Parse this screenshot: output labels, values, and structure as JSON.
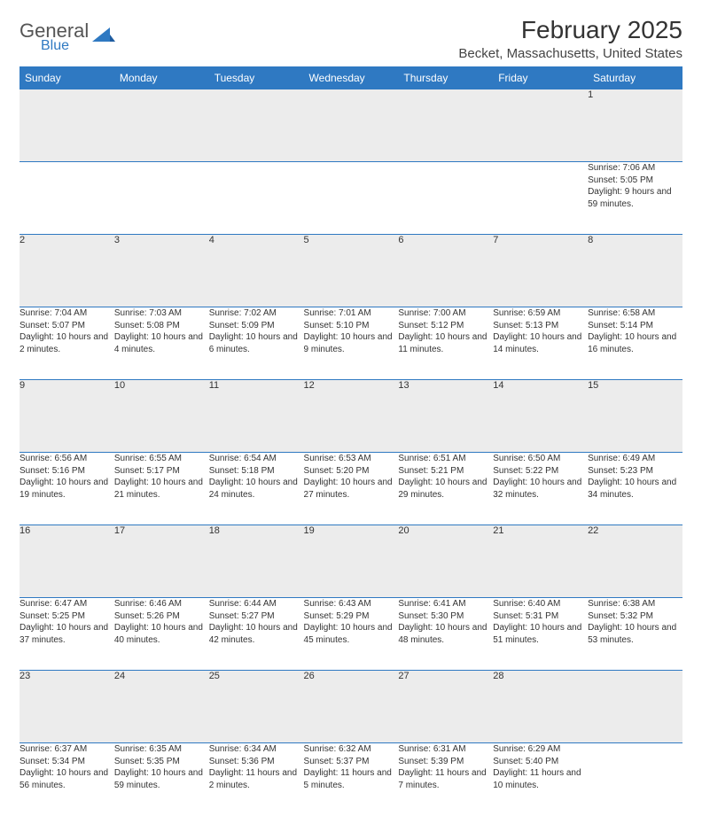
{
  "logo": {
    "word1": "General",
    "word2": "Blue",
    "icon_color": "#2f79c2",
    "text_color": "#555555"
  },
  "header": {
    "month_title": "February 2025",
    "location": "Becket, Massachusetts, United States"
  },
  "colors": {
    "header_bg": "#2f79c2",
    "header_text": "#ffffff",
    "daynum_bg": "#ececec",
    "divider": "#2f79c2",
    "body_text": "#333333"
  },
  "typography": {
    "title_fontsize": 28,
    "location_fontsize": 15,
    "dayheader_fontsize": 12,
    "daynum_fontsize": 11,
    "detail_fontsize": 10
  },
  "day_headers": [
    "Sunday",
    "Monday",
    "Tuesday",
    "Wednesday",
    "Thursday",
    "Friday",
    "Saturday"
  ],
  "weeks": [
    [
      null,
      null,
      null,
      null,
      null,
      null,
      {
        "n": "1",
        "sr": "Sunrise: 7:06 AM",
        "ss": "Sunset: 5:05 PM",
        "dl": "Daylight: 9 hours and 59 minutes."
      }
    ],
    [
      {
        "n": "2",
        "sr": "Sunrise: 7:04 AM",
        "ss": "Sunset: 5:07 PM",
        "dl": "Daylight: 10 hours and 2 minutes."
      },
      {
        "n": "3",
        "sr": "Sunrise: 7:03 AM",
        "ss": "Sunset: 5:08 PM",
        "dl": "Daylight: 10 hours and 4 minutes."
      },
      {
        "n": "4",
        "sr": "Sunrise: 7:02 AM",
        "ss": "Sunset: 5:09 PM",
        "dl": "Daylight: 10 hours and 6 minutes."
      },
      {
        "n": "5",
        "sr": "Sunrise: 7:01 AM",
        "ss": "Sunset: 5:10 PM",
        "dl": "Daylight: 10 hours and 9 minutes."
      },
      {
        "n": "6",
        "sr": "Sunrise: 7:00 AM",
        "ss": "Sunset: 5:12 PM",
        "dl": "Daylight: 10 hours and 11 minutes."
      },
      {
        "n": "7",
        "sr": "Sunrise: 6:59 AM",
        "ss": "Sunset: 5:13 PM",
        "dl": "Daylight: 10 hours and 14 minutes."
      },
      {
        "n": "8",
        "sr": "Sunrise: 6:58 AM",
        "ss": "Sunset: 5:14 PM",
        "dl": "Daylight: 10 hours and 16 minutes."
      }
    ],
    [
      {
        "n": "9",
        "sr": "Sunrise: 6:56 AM",
        "ss": "Sunset: 5:16 PM",
        "dl": "Daylight: 10 hours and 19 minutes."
      },
      {
        "n": "10",
        "sr": "Sunrise: 6:55 AM",
        "ss": "Sunset: 5:17 PM",
        "dl": "Daylight: 10 hours and 21 minutes."
      },
      {
        "n": "11",
        "sr": "Sunrise: 6:54 AM",
        "ss": "Sunset: 5:18 PM",
        "dl": "Daylight: 10 hours and 24 minutes."
      },
      {
        "n": "12",
        "sr": "Sunrise: 6:53 AM",
        "ss": "Sunset: 5:20 PM",
        "dl": "Daylight: 10 hours and 27 minutes."
      },
      {
        "n": "13",
        "sr": "Sunrise: 6:51 AM",
        "ss": "Sunset: 5:21 PM",
        "dl": "Daylight: 10 hours and 29 minutes."
      },
      {
        "n": "14",
        "sr": "Sunrise: 6:50 AM",
        "ss": "Sunset: 5:22 PM",
        "dl": "Daylight: 10 hours and 32 minutes."
      },
      {
        "n": "15",
        "sr": "Sunrise: 6:49 AM",
        "ss": "Sunset: 5:23 PM",
        "dl": "Daylight: 10 hours and 34 minutes."
      }
    ],
    [
      {
        "n": "16",
        "sr": "Sunrise: 6:47 AM",
        "ss": "Sunset: 5:25 PM",
        "dl": "Daylight: 10 hours and 37 minutes."
      },
      {
        "n": "17",
        "sr": "Sunrise: 6:46 AM",
        "ss": "Sunset: 5:26 PM",
        "dl": "Daylight: 10 hours and 40 minutes."
      },
      {
        "n": "18",
        "sr": "Sunrise: 6:44 AM",
        "ss": "Sunset: 5:27 PM",
        "dl": "Daylight: 10 hours and 42 minutes."
      },
      {
        "n": "19",
        "sr": "Sunrise: 6:43 AM",
        "ss": "Sunset: 5:29 PM",
        "dl": "Daylight: 10 hours and 45 minutes."
      },
      {
        "n": "20",
        "sr": "Sunrise: 6:41 AM",
        "ss": "Sunset: 5:30 PM",
        "dl": "Daylight: 10 hours and 48 minutes."
      },
      {
        "n": "21",
        "sr": "Sunrise: 6:40 AM",
        "ss": "Sunset: 5:31 PM",
        "dl": "Daylight: 10 hours and 51 minutes."
      },
      {
        "n": "22",
        "sr": "Sunrise: 6:38 AM",
        "ss": "Sunset: 5:32 PM",
        "dl": "Daylight: 10 hours and 53 minutes."
      }
    ],
    [
      {
        "n": "23",
        "sr": "Sunrise: 6:37 AM",
        "ss": "Sunset: 5:34 PM",
        "dl": "Daylight: 10 hours and 56 minutes."
      },
      {
        "n": "24",
        "sr": "Sunrise: 6:35 AM",
        "ss": "Sunset: 5:35 PM",
        "dl": "Daylight: 10 hours and 59 minutes."
      },
      {
        "n": "25",
        "sr": "Sunrise: 6:34 AM",
        "ss": "Sunset: 5:36 PM",
        "dl": "Daylight: 11 hours and 2 minutes."
      },
      {
        "n": "26",
        "sr": "Sunrise: 6:32 AM",
        "ss": "Sunset: 5:37 PM",
        "dl": "Daylight: 11 hours and 5 minutes."
      },
      {
        "n": "27",
        "sr": "Sunrise: 6:31 AM",
        "ss": "Sunset: 5:39 PM",
        "dl": "Daylight: 11 hours and 7 minutes."
      },
      {
        "n": "28",
        "sr": "Sunrise: 6:29 AM",
        "ss": "Sunset: 5:40 PM",
        "dl": "Daylight: 11 hours and 10 minutes."
      },
      null
    ]
  ]
}
